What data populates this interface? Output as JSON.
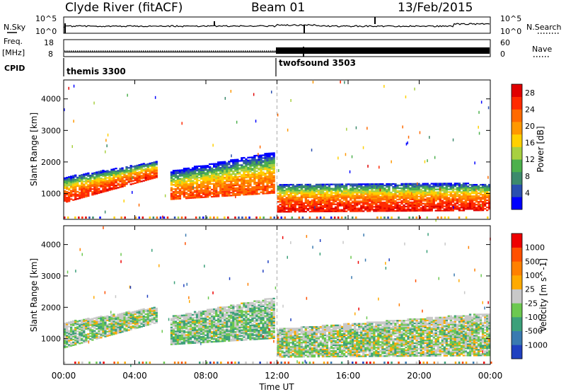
{
  "header": {
    "station": "Clyde River (fitACF)",
    "beam": "Beam 01",
    "date": "13/Feb/2015"
  },
  "status_panels": {
    "nsky_label": "N.Sky",
    "nsky_ticks": [
      "10^5",
      "10^0"
    ],
    "nsearch_label": "N.Search",
    "nsearch_ticks": [
      "10^5",
      "10^0"
    ],
    "freq_label": "Freq.",
    "freq_unit": "[MHz]",
    "freq_ticks": [
      "18",
      "8"
    ],
    "nave_label": "Nave",
    "nave_ticks": [
      "60",
      "0"
    ],
    "cpid_label": "CPID",
    "cpid_modes": [
      {
        "name": "themis 3300",
        "start_hour": 0,
        "end_hour": 12
      },
      {
        "name": "twofsound 3503",
        "start_hour": 12,
        "end_hour": 24
      }
    ]
  },
  "chart_data": [
    {
      "type": "heatmap",
      "title": "",
      "quantity": "Power",
      "xlabel": "",
      "ylabel": "Slant Range [km]",
      "x_ticks": [
        "00:00",
        "04:00",
        "08:00",
        "12:00",
        "16:00",
        "20:00",
        "00:00"
      ],
      "xlim_hours": [
        0,
        24
      ],
      "y_ticks": [
        1000,
        2000,
        3000,
        4000
      ],
      "ylim": [
        180,
        4600
      ],
      "colorbar": {
        "label": "Power [dB]",
        "ticks": [
          "4",
          "8",
          "12",
          "16",
          "20",
          "24",
          "28"
        ],
        "range": [
          0,
          30
        ],
        "colors": [
          "#0000ff",
          "#2a4fb0",
          "#3c8a6c",
          "#4cb04c",
          "#a8d040",
          "#ffd000",
          "#ff9800",
          "#ff6a00",
          "#ff2a00",
          "#e00000"
        ]
      },
      "echo_regions": [
        {
          "t0": 0.0,
          "t1": 5.2,
          "r0a": 700,
          "r1a": 1500,
          "r0b": 1500,
          "r1b": 2000,
          "value": 26
        },
        {
          "t0": 6.0,
          "t1": 11.8,
          "r0a": 800,
          "r1a": 1700,
          "r0b": 1000,
          "r1b": 2300,
          "value": 24
        },
        {
          "t0": 12.0,
          "t1": 24.0,
          "r0a": 400,
          "r1a": 1300,
          "r0b": 450,
          "r1b": 1300,
          "value": 27
        }
      ]
    },
    {
      "type": "heatmap",
      "title": "",
      "quantity": "Velocity",
      "xlabel": "Time UT",
      "ylabel": "Slant Range [km]",
      "x_ticks": [
        "00:00",
        "04:00",
        "08:00",
        "12:00",
        "16:00",
        "20:00",
        "00:00"
      ],
      "xlim_hours": [
        0,
        24
      ],
      "y_ticks": [
        1000,
        2000,
        3000,
        4000
      ],
      "ylim": [
        180,
        4600
      ],
      "colorbar": {
        "label": "Velocity [m s^-1]",
        "ticks": [
          "1000",
          "500",
          "100",
          "25",
          "-25",
          "-100",
          "-500",
          "-1000"
        ],
        "range": [
          -1000,
          1000
        ],
        "colors": [
          "#2040c0",
          "#3a7ab0",
          "#3ca07a",
          "#6cc850",
          "#c8c8c8",
          "#ffaa00",
          "#ff8000",
          "#ff5000",
          "#ee0000"
        ]
      },
      "echo_regions": [
        {
          "t0": 0.0,
          "t1": 5.2,
          "r0a": 700,
          "r1a": 1500,
          "r0b": 1500,
          "r1b": 2000,
          "value": -150
        },
        {
          "t0": 6.0,
          "t1": 11.8,
          "r0a": 800,
          "r1a": 1700,
          "r0b": 1000,
          "r1b": 2300,
          "value": -200
        },
        {
          "t0": 12.0,
          "t1": 24.0,
          "r0a": 400,
          "r1a": 1300,
          "r0b": 450,
          "r1b": 1800,
          "value": -120
        }
      ]
    }
  ]
}
